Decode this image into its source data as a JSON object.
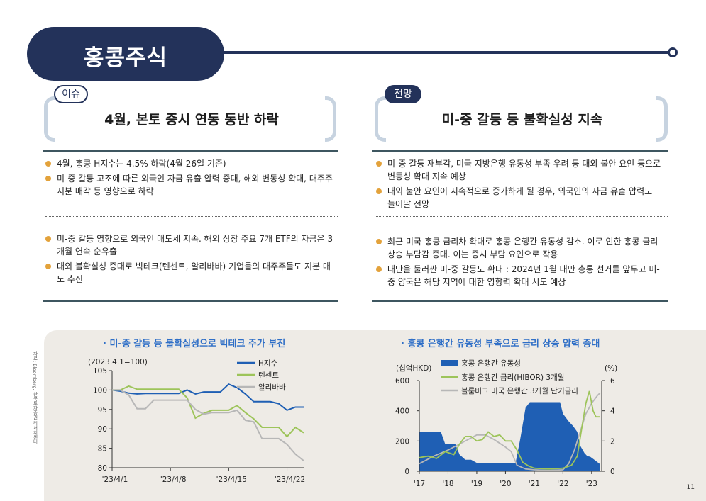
{
  "header": {
    "title": "홍콩주식"
  },
  "left": {
    "tag": "이슈",
    "title": "4월, 본토 증시 연동 동반 하락",
    "group1": [
      "4월, 홍콩 H지수는 4.5% 하락(4월 26일 기준)",
      "미-중 갈등 고조에 따른 외국인 자금 유출 압력 증대, 해외 변동성 확대, 대주주 지분 매각 등 영향으로 하락"
    ],
    "group2": [
      "미-중 갈등 영향으로 외국인 매도세 지속. 해외 상장 주요 7개 ETF의 자금은 3개월 연속 순유출",
      "대외 불확실성 증대로 빅테크(텐센트, 알리바바) 기업들의 대주주들도 지분 매도 추진"
    ]
  },
  "right": {
    "tag": "전망",
    "title": "미-중 갈등 등 불확실성 지속",
    "group1": [
      "미-중 갈등 재부각, 미국 지방은행 유동성 부족 우려 등 대외 불안 요인 등으로 변동성 확대 지속 예상",
      "대외 불안 요인이 지속적으로 증가하게 될 경우, 외국인의 자금 유출 압력도 늘어날 전망"
    ],
    "group2": [
      "최근 미국-홍콩 금리차 확대로 홍콩 은행간 유동성 감소. 이로 인한 홍콩 금리 상승 부담감 증대. 이는 증시 부담 요인으로 작용",
      "대만을 둘러싼 미-중 갈등도 확대 : 2024년 1월 대만 총통 선거를 앞두고 미-중 양국은 해당 지역에 대한 영향력 확대 시도 예상"
    ]
  },
  "source": "자료: Bloomberg, 한국투자증권 리서치센터",
  "page_number": "11",
  "chart_data": [
    {
      "type": "line",
      "title": "· 미-중 갈등 등 불확실성으로 빅테크 주가 부진",
      "ylabel": "(2023.4.1=100)",
      "ylim": [
        80,
        105
      ],
      "yticks": [
        80,
        85,
        90,
        95,
        100,
        105
      ],
      "xticks": [
        "'23/4/1",
        "'23/4/8",
        "'23/4/15",
        "'23/4/22"
      ],
      "xtick_index": [
        0,
        7,
        14,
        21
      ],
      "legend": "top-right",
      "series": [
        {
          "name": "H지수",
          "color": "#1f5fb4",
          "values": [
            100,
            99.7,
            99.2,
            99.0,
            99.1,
            99.1,
            99.1,
            99.1,
            99.1,
            100,
            99.0,
            99.5,
            99.5,
            99.5,
            101.5,
            100.6,
            99.0,
            97.0,
            97.0,
            97.0,
            96.5,
            94.8,
            95.6,
            95.6
          ]
        },
        {
          "name": "텐센트",
          "color": "#9dc45a",
          "values": [
            100,
            100,
            101,
            100.2,
            100.2,
            100.2,
            100.2,
            100.2,
            100.2,
            98.0,
            92.8,
            94.0,
            94.8,
            94.8,
            94.8,
            96.0,
            94.2,
            92.6,
            90.4,
            90.4,
            90.4,
            88.0,
            90.4,
            89.0
          ]
        },
        {
          "name": "알리바바",
          "color": "#b7b7b7",
          "values": [
            100,
            100,
            98.7,
            95.2,
            95.2,
            97.4,
            97.4,
            97.4,
            97.4,
            97.4,
            95.0,
            93.8,
            94.2,
            94.2,
            94.2,
            94.8,
            92.2,
            91.8,
            87.5,
            87.5,
            87.5,
            86.0,
            83.5,
            81.8
          ]
        }
      ]
    },
    {
      "type": "area",
      "title": "· 홍콩 은행간 유동성 부족으로 금리 상승 압력 증대",
      "ylabel_left": "(십억HKD)",
      "ylabel_right": "(%)",
      "ylim_left": [
        0,
        600
      ],
      "ylim_right": [
        0,
        6
      ],
      "yticks_left": [
        0,
        200,
        400,
        600
      ],
      "yticks_right": [
        0,
        2,
        4,
        6
      ],
      "xticks": [
        "'17",
        "'18",
        "'19",
        "'20",
        "'21",
        "'22",
        "'23"
      ],
      "xlim": [
        2017,
        2023.35
      ],
      "legend": "top-left",
      "liquidity": {
        "name": "홍콩 은행간 유동성",
        "color": "#1f5fb4",
        "x": [
          2017.0,
          2017.75,
          2017.9,
          2018.25,
          2018.4,
          2018.6,
          2018.8,
          2019.0,
          2019.5,
          2019.8,
          2020.0,
          2020.2,
          2020.35,
          2020.5,
          2020.7,
          2020.85,
          2021.0,
          2021.5,
          2021.9,
          2022.0,
          2022.2,
          2022.35,
          2022.5,
          2022.6,
          2022.75,
          2022.85,
          2022.95,
          2023.1,
          2023.3
        ],
        "values": [
          260,
          260,
          180,
          180,
          110,
          76,
          76,
          56,
          56,
          56,
          56,
          56,
          56,
          200,
          420,
          457,
          457,
          457,
          457,
          380,
          330,
          300,
          260,
          170,
          120,
          100,
          96,
          75,
          46
        ]
      },
      "hibor": {
        "name": "홍콩 은행간 금리(HIBOR) 3개월",
        "color": "#9dc45a",
        "x": [
          2017.0,
          2017.3,
          2017.6,
          2017.9,
          2018.2,
          2018.4,
          2018.6,
          2018.8,
          2019.0,
          2019.2,
          2019.4,
          2019.6,
          2019.8,
          2020.0,
          2020.2,
          2020.4,
          2020.6,
          2020.8,
          2021.0,
          2021.5,
          2022.0,
          2022.3,
          2022.5,
          2022.65,
          2022.8,
          2022.92,
          2023.05,
          2023.15,
          2023.3
        ],
        "values": [
          0.9,
          1.0,
          0.85,
          1.3,
          1.1,
          1.8,
          2.3,
          2.3,
          2.0,
          2.1,
          2.6,
          2.3,
          2.4,
          2.0,
          2.0,
          1.4,
          0.6,
          0.35,
          0.2,
          0.15,
          0.2,
          0.4,
          1.0,
          2.8,
          4.5,
          5.3,
          4.0,
          3.6,
          3.6
        ]
      },
      "us_bill": {
        "name": "블룸버그 미국 은행간 3개월 단기금리",
        "color": "#b7b7b7",
        "x": [
          2017.0,
          2017.5,
          2018.0,
          2018.5,
          2019.0,
          2019.3,
          2019.6,
          2020.0,
          2020.2,
          2020.4,
          2020.7,
          2021.0,
          2021.5,
          2022.0,
          2022.2,
          2022.4,
          2022.6,
          2022.8,
          2023.0,
          2023.2,
          2023.3
        ],
        "values": [
          0.5,
          1.0,
          1.4,
          1.9,
          2.4,
          2.4,
          2.1,
          1.6,
          1.3,
          0.4,
          0.15,
          0.1,
          0.05,
          0.1,
          0.5,
          1.4,
          2.6,
          3.8,
          4.5,
          5.0,
          5.2
        ]
      }
    }
  ]
}
